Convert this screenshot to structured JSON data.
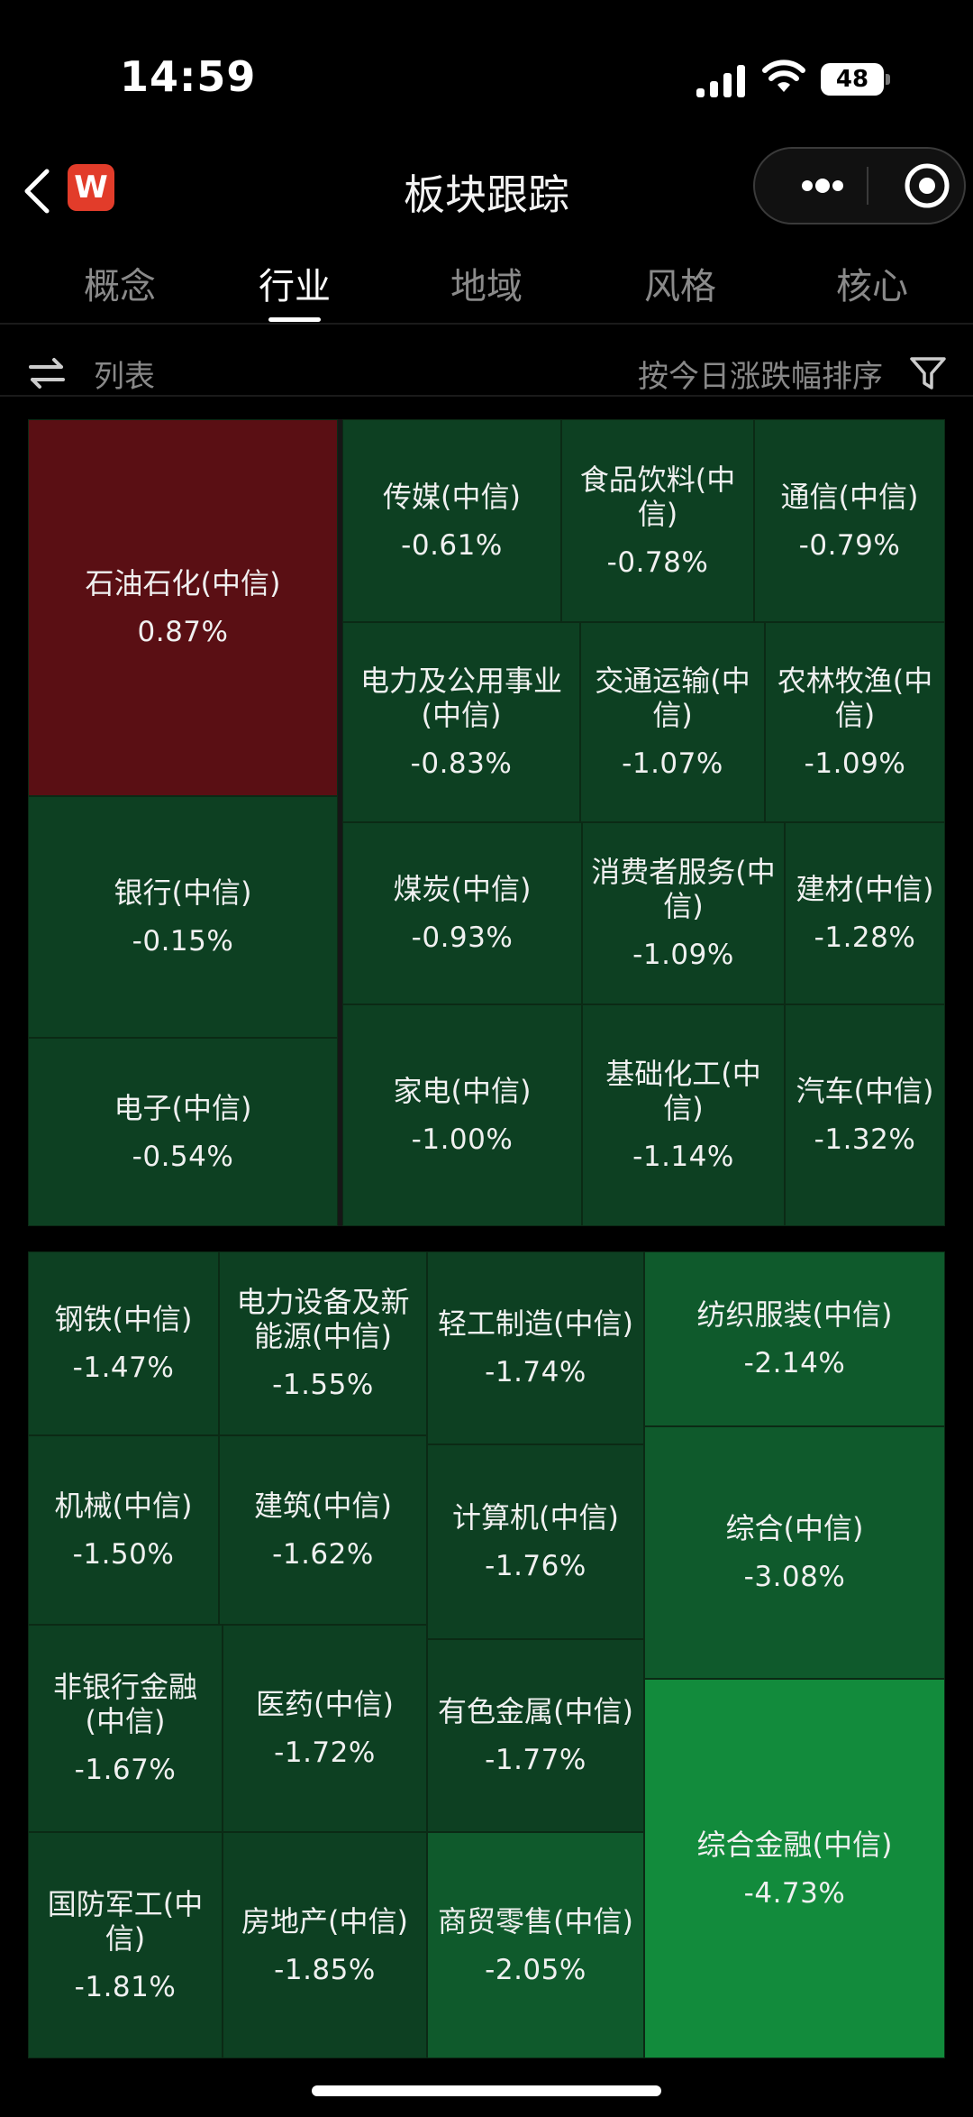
{
  "status_bar": {
    "time": "14:59",
    "battery": "48"
  },
  "nav": {
    "title": "板块跟踪",
    "logo_letter": "W"
  },
  "tabs": [
    {
      "label": "概念",
      "active": false
    },
    {
      "label": "行业",
      "active": true
    },
    {
      "label": "地域",
      "active": false
    },
    {
      "label": "风格",
      "active": false
    },
    {
      "label": "核心",
      "active": false
    }
  ],
  "toolbar": {
    "list_label": "列表",
    "sort_label": "按今日涨跌幅排序"
  },
  "colors": {
    "up": "#5a0f14",
    "down_dark": "#0d4022",
    "down_mid": "#0f5a2c",
    "down_bright": "#128b3c"
  },
  "treemap1": [
    {
      "name": "石油石化(中信)",
      "change": "0.87%"
    },
    {
      "name": "传媒(中信)",
      "change": "-0.61%"
    },
    {
      "name": "食品饮料(中信)",
      "change": "-0.78%"
    },
    {
      "name": "通信(中信)",
      "change": "-0.79%"
    },
    {
      "name": "电力及公用事业(中信)",
      "change": "-0.83%"
    },
    {
      "name": "交通运输(中信)",
      "change": "-1.07%"
    },
    {
      "name": "农林牧渔(中信)",
      "change": "-1.09%"
    },
    {
      "name": "银行(中信)",
      "change": "-0.15%"
    },
    {
      "name": "煤炭(中信)",
      "change": "-0.93%"
    },
    {
      "name": "消费者服务(中信)",
      "change": "-1.09%"
    },
    {
      "name": "建材(中信)",
      "change": "-1.28%"
    },
    {
      "name": "电子(中信)",
      "change": "-0.54%"
    },
    {
      "name": "家电(中信)",
      "change": "-1.00%"
    },
    {
      "name": "基础化工(中信)",
      "change": "-1.14%"
    },
    {
      "name": "汽车(中信)",
      "change": "-1.32%"
    }
  ],
  "treemap2": [
    {
      "name": "钢铁(中信)",
      "change": "-1.47%"
    },
    {
      "name": "电力设备及新能源(中信)",
      "change": "-1.55%"
    },
    {
      "name": "轻工制造(中信)",
      "change": "-1.74%"
    },
    {
      "name": "纺织服装(中信)",
      "change": "-2.14%"
    },
    {
      "name": "机械(中信)",
      "change": "-1.50%"
    },
    {
      "name": "建筑(中信)",
      "change": "-1.62%"
    },
    {
      "name": "计算机(中信)",
      "change": "-1.76%"
    },
    {
      "name": "综合(中信)",
      "change": "-3.08%"
    },
    {
      "name": "非银行金融(中信)",
      "change": "-1.67%"
    },
    {
      "name": "医药(中信)",
      "change": "-1.72%"
    },
    {
      "name": "有色金属(中信)",
      "change": "-1.77%"
    },
    {
      "name": "国防军工(中信)",
      "change": "-1.81%"
    },
    {
      "name": "房地产(中信)",
      "change": "-1.85%"
    },
    {
      "name": "商贸零售(中信)",
      "change": "-2.05%"
    },
    {
      "name": "综合金融(中信)",
      "change": "-4.73%"
    }
  ]
}
